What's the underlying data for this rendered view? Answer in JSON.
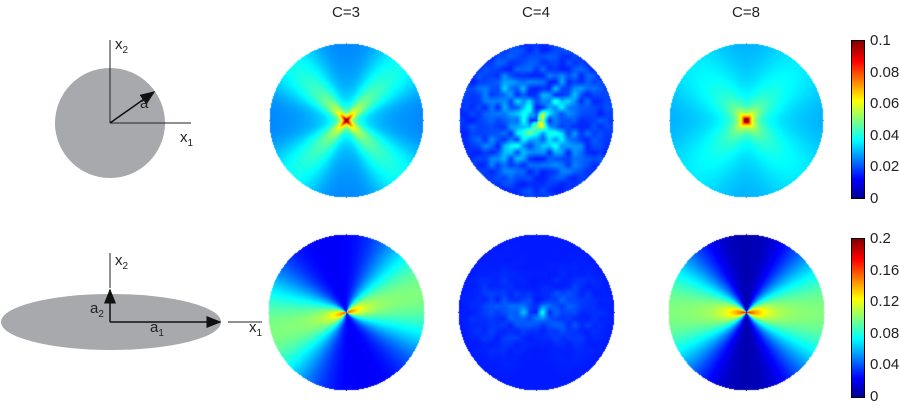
{
  "columns": [
    {
      "title": "C=3"
    },
    {
      "title": "C=4"
    },
    {
      "title": "C=8"
    }
  ],
  "schematic_circle": {
    "x1": "x",
    "x1_sub": "1",
    "x2": "x",
    "x2_sub": "2",
    "radius": "a",
    "fill": "#a7a9ac"
  },
  "schematic_ellipse": {
    "x1": "x",
    "x1_sub": "1",
    "x2": "x",
    "x2_sub": "2",
    "a1": "a",
    "a1_sub": "1",
    "a2": "a",
    "a2_sub": "2",
    "fill": "#a7a9ac"
  },
  "colorbars": [
    {
      "range": [
        0,
        0.1
      ],
      "ticks": [
        "0.1",
        "0.08",
        "0.06",
        "0.04",
        "0.02",
        "0"
      ],
      "colormap": "jet"
    },
    {
      "range": [
        0,
        0.2
      ],
      "ticks": [
        "0.2",
        "0.16",
        "0.12",
        "0.08",
        "0.04",
        "0"
      ],
      "colormap": "jet"
    }
  ]
}
